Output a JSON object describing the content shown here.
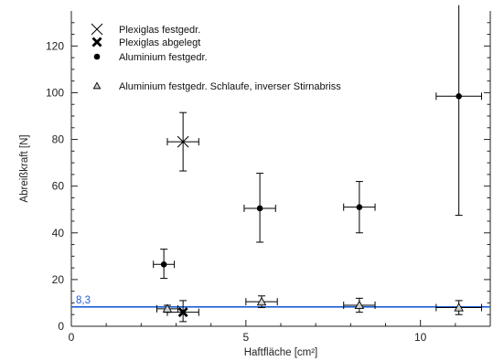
{
  "chart_data": {
    "type": "scatter",
    "xlabel": "Haftfläche [cm²]",
    "ylabel": "Abreißkraft [N]",
    "xlim": [
      0,
      12
    ],
    "ylim": [
      0,
      135
    ],
    "x_ticks": [
      "0",
      "5",
      "10"
    ],
    "y_ticks": [
      "0",
      "20",
      "40",
      "60",
      "80",
      "100",
      "120"
    ],
    "grid": false,
    "legend_position": "top-left",
    "series": [
      {
        "name": "Plexiglas festgedr.",
        "marker": "x-thin",
        "color": "#000000",
        "points": [
          {
            "x": 3.2,
            "y": 79,
            "xerr": 0.45,
            "yerr_low": 12.5,
            "yerr_high": 12.5
          }
        ]
      },
      {
        "name": "Plexiglas abgelegt",
        "marker": "x-bold",
        "color": "#000000",
        "points": [
          {
            "x": 3.2,
            "y": 6,
            "xerr": 0.45,
            "yerr_low": 4,
            "yerr_high": 5
          }
        ]
      },
      {
        "name": "Aluminium festgedr.",
        "marker": "circle",
        "color": "#000000",
        "points": [
          {
            "x": 2.65,
            "y": 26.5,
            "xerr": 0.3,
            "yerr_low": 6,
            "yerr_high": 6.5
          },
          {
            "x": 5.4,
            "y": 50.5,
            "xerr": 0.45,
            "yerr_low": 14.5,
            "yerr_high": 15
          },
          {
            "x": 8.25,
            "y": 51,
            "xerr": 0.45,
            "yerr_low": 11,
            "yerr_high": 11
          },
          {
            "x": 11.1,
            "y": 98.5,
            "xerr": 0.65,
            "yerr_low": 51,
            "yerr_high": 39
          }
        ]
      },
      {
        "name": "Aluminium festgedr. Schlaufe, inverser Stirnabriss",
        "marker": "triangle",
        "color": "#000000",
        "points": [
          {
            "x": 2.75,
            "y": 7.5,
            "xerr": 0.3,
            "yerr_low": 1.5,
            "yerr_high": 1.5
          },
          {
            "x": 5.45,
            "y": 10.5,
            "xerr": 0.45,
            "yerr_low": 2.5,
            "yerr_high": 2.5
          },
          {
            "x": 8.25,
            "y": 9,
            "xerr": 0.45,
            "yerr_low": 3,
            "yerr_high": 3
          },
          {
            "x": 11.1,
            "y": 8,
            "xerr": 0.65,
            "yerr_low": 3,
            "yerr_high": 3
          }
        ]
      }
    ],
    "reference_line": {
      "y": 8.3,
      "label": "8,3",
      "color": "#1f5fd6"
    }
  }
}
